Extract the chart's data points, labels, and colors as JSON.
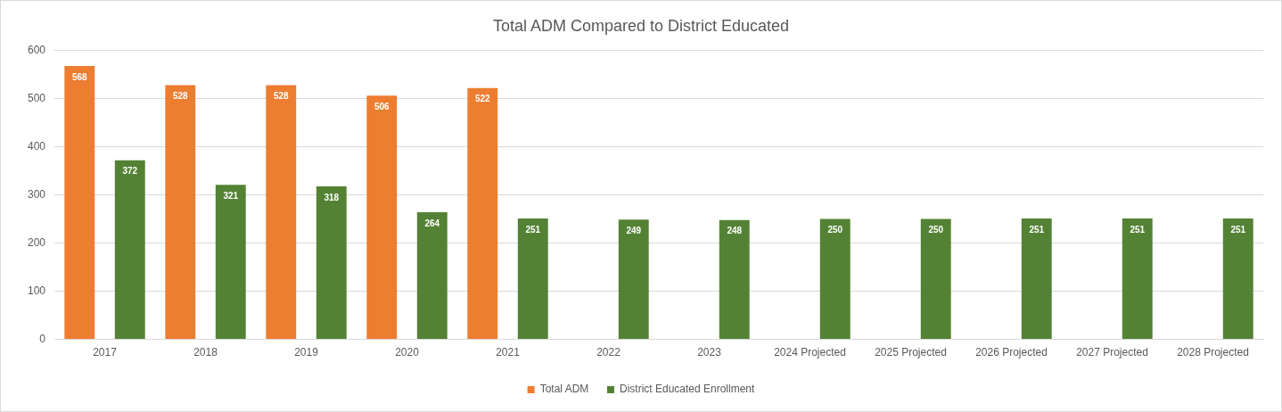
{
  "chart_data": {
    "type": "bar",
    "title": "Total ADM Compared to District Educated",
    "categories": [
      "2017",
      "2018",
      "2019",
      "2020",
      "2021",
      "2022",
      "2023",
      "2024 Projected",
      "2025 Projected",
      "2026 Projected",
      "2027 Projected",
      "2028 Projected"
    ],
    "series": [
      {
        "name": "Total ADM",
        "color": "#ed7d31",
        "values": [
          568,
          528,
          528,
          506,
          522,
          null,
          null,
          null,
          null,
          null,
          null,
          null
        ]
      },
      {
        "name": "District Educated Enrollment",
        "color": "#548235",
        "values": [
          372,
          321,
          318,
          264,
          251,
          249,
          248,
          250,
          250,
          251,
          251,
          251
        ]
      }
    ],
    "ylim": [
      0,
      600
    ],
    "yticks": [
      0,
      100,
      200,
      300,
      400,
      500,
      600
    ],
    "grid": "y",
    "legend": "bottom",
    "data_labels": true
  }
}
